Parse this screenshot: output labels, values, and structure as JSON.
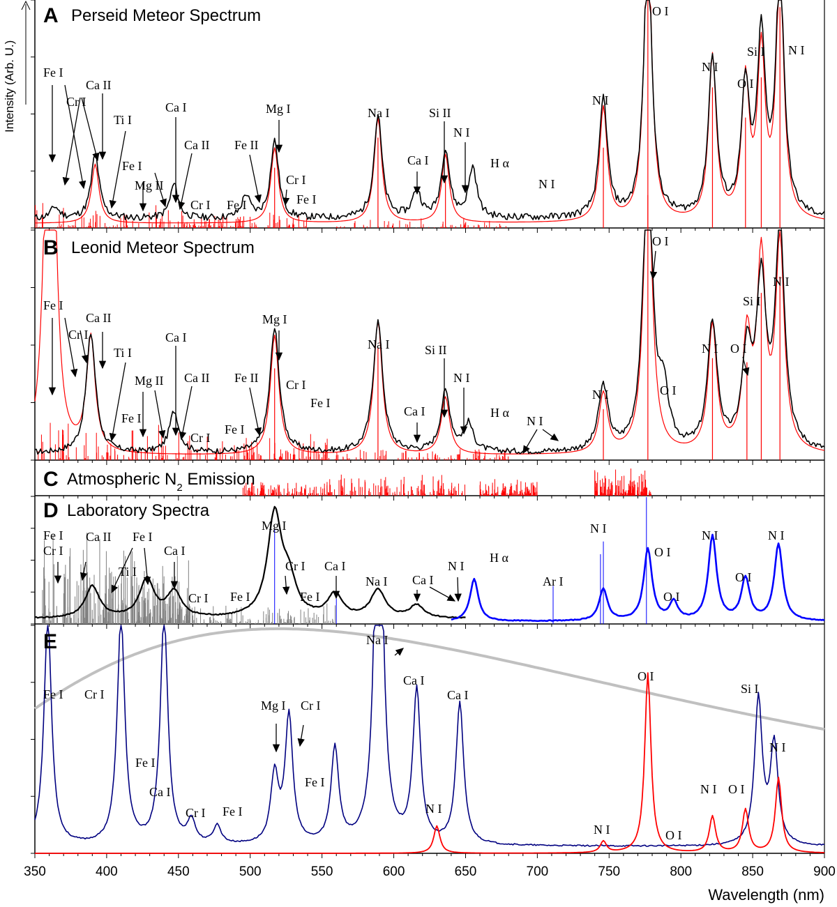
{
  "chart_data": {
    "type": "line",
    "xlabel": "Wavelength (nm)",
    "ylabel": "Intensity (Arb. U.)",
    "xlim": [
      350,
      900
    ],
    "x_ticks": [
      350,
      400,
      450,
      500,
      550,
      600,
      650,
      700,
      750,
      800,
      850,
      900
    ],
    "grid": false,
    "panels": [
      {
        "letter": "A",
        "title": "Perseid Meteor Spectrum",
        "series": [
          {
            "role": "observed",
            "color": "#000000",
            "peaks": [
              [
                364,
                0.05
              ],
              [
                392,
                0.28
              ],
              [
                447,
                0.15
              ],
              [
                497,
                0.1
              ],
              [
                517,
                0.34
              ],
              [
                589,
                0.45
              ],
              [
                616,
                0.12
              ],
              [
                636,
                0.3
              ],
              [
                655,
                0.22
              ],
              [
                746,
                0.52
              ],
              [
                777,
                1.2
              ],
              [
                822,
                0.7
              ],
              [
                845,
                0.55
              ],
              [
                856,
                0.76
              ],
              [
                869,
                1.1
              ]
            ]
          },
          {
            "role": "model",
            "color": "#ff0000",
            "peaks": [
              [
                392,
                0.26
              ],
              [
                517,
                0.33
              ],
              [
                589,
                0.46
              ],
              [
                636,
                0.3
              ],
              [
                746,
                0.5
              ],
              [
                777,
                1.3
              ],
              [
                822,
                0.72
              ],
              [
                845,
                0.6
              ],
              [
                856,
                0.72
              ],
              [
                869,
                1.1
              ]
            ]
          }
        ],
        "labels": [
          "Fe I",
          "Cr I",
          "Ca II",
          "Ti I",
          "Mg II",
          "Fe I",
          "Ca I",
          "Ca II",
          "Cr I",
          "Fe I",
          "Fe II",
          "Mg I",
          "Cr I",
          "Fe I",
          "Na I",
          "Ca I",
          "Si II",
          "N I",
          "H α",
          "N I",
          "N I",
          "O I",
          "N I",
          "O I",
          "Si I",
          "N I"
        ]
      },
      {
        "letter": "B",
        "title": "Leonid   Meteor Spectrum",
        "series": [
          {
            "role": "observed",
            "color": "#000000",
            "peaks": [
              [
                389,
                0.52
              ],
              [
                447,
                0.18
              ],
              [
                517,
                0.54
              ],
              [
                589,
                0.57
              ],
              [
                636,
                0.26
              ],
              [
                652,
                0.12
              ],
              [
                746,
                0.28
              ],
              [
                777,
                1.25
              ],
              [
                788,
                0.22
              ],
              [
                822,
                0.55
              ],
              [
                846,
                0.4
              ],
              [
                856,
                0.7
              ],
              [
                869,
                0.95
              ]
            ]
          },
          {
            "role": "model",
            "color": "#ff0000",
            "peaks": [
              [
                358,
                0.95
              ],
              [
                363,
                1.0
              ],
              [
                389,
                0.5
              ],
              [
                517,
                0.52
              ],
              [
                589,
                0.58
              ],
              [
                636,
                0.25
              ],
              [
                746,
                0.26
              ],
              [
                777,
                1.3
              ],
              [
                822,
                0.55
              ],
              [
                846,
                0.48
              ],
              [
                856,
                0.82
              ],
              [
                869,
                0.9
              ]
            ]
          }
        ],
        "labels": [
          "Fe I",
          "Cr I",
          "Ca II",
          "Ti I",
          "Fe I",
          "Mg II",
          "Ca I",
          "Ca II",
          "Cr I",
          "Fe I",
          "Fe II",
          "Mg I",
          "Cr I",
          "Fe I",
          "Na I",
          "Ca I",
          "Si II",
          "N I",
          "H α",
          "N I",
          "N I",
          "O I",
          "O I",
          "N I",
          "O I",
          "Si I",
          "N I"
        ]
      },
      {
        "letter": "C",
        "title": "Atmospheric N",
        "title_sub": "2",
        "title_tail": " Emission",
        "series": [
          {
            "role": "N2 bands",
            "color": "#ff0000",
            "range": [
              495,
              780
            ]
          }
        ]
      },
      {
        "letter": "D",
        "title": "Laboratory Spectra",
        "series": [
          {
            "role": "lab lines",
            "color": "#808080",
            "range": [
              355,
              560
            ]
          },
          {
            "role": "meteorite",
            "color": "#000000",
            "peaks": [
              [
                390,
                0.25
              ],
              [
                428,
                0.3
              ],
              [
                447,
                0.2
              ],
              [
                517,
                0.8
              ],
              [
                527,
                0.25
              ],
              [
                559,
                0.18
              ],
              [
                589,
                0.22
              ],
              [
                616,
                0.1
              ]
            ]
          },
          {
            "role": "air plasma",
            "color": "#0000ff",
            "peaks": [
              [
                656,
                0.33
              ],
              [
                746,
                0.25
              ],
              [
                777,
                0.56
              ],
              [
                795,
                0.14
              ],
              [
                822,
                0.66
              ],
              [
                845,
                0.33
              ],
              [
                868,
                0.6
              ]
            ]
          }
        ],
        "labels": [
          "Fe I",
          "Cr I",
          "Ca II",
          "Fe I",
          "Ti I",
          "Ca I",
          "Cr I",
          "Fe I",
          "Mg I",
          "Cr I",
          "Fe I",
          "Ca I",
          "Na I",
          "Ca I",
          "N I",
          "H α",
          "Ar I",
          "N I",
          "O I",
          "O I",
          "N I",
          "O I",
          "N I"
        ]
      },
      {
        "letter": "E",
        "series": [
          {
            "role": "continuum",
            "color": "#c0c0c0",
            "peak_nm": 520
          },
          {
            "role": "metal lines",
            "color": "#000080",
            "peaks": [
              [
                359,
                1.0
              ],
              [
                410,
                1.0
              ],
              [
                440,
                1.0
              ],
              [
                459,
                0.1
              ],
              [
                477,
                0.08
              ],
              [
                517,
                0.3
              ],
              [
                527,
                0.56
              ],
              [
                559,
                0.42
              ],
              [
                589,
                1.0
              ],
              [
                590,
                1.0
              ],
              [
                616,
                0.67
              ],
              [
                646,
                0.62
              ],
              [
                854,
                0.64
              ],
              [
                865,
                0.44
              ]
            ]
          },
          {
            "role": "air lines",
            "color": "#ff0000",
            "peaks": [
              [
                630,
                0.12
              ],
              [
                746,
                0.05
              ],
              [
                777,
                0.79
              ],
              [
                822,
                0.16
              ],
              [
                845,
                0.19
              ],
              [
                868,
                0.33
              ]
            ]
          }
        ],
        "labels": [
          "Fe I",
          "Cr I",
          "Fe I",
          "Ca I",
          "Cr I",
          "Fe I",
          "Mg I",
          "Cr I",
          "Fe I",
          "Na I",
          "Ca I",
          "Ca I",
          "N I",
          "N I",
          "O I",
          "O I",
          "N I",
          "O I",
          "Si I",
          "N I"
        ]
      }
    ]
  }
}
